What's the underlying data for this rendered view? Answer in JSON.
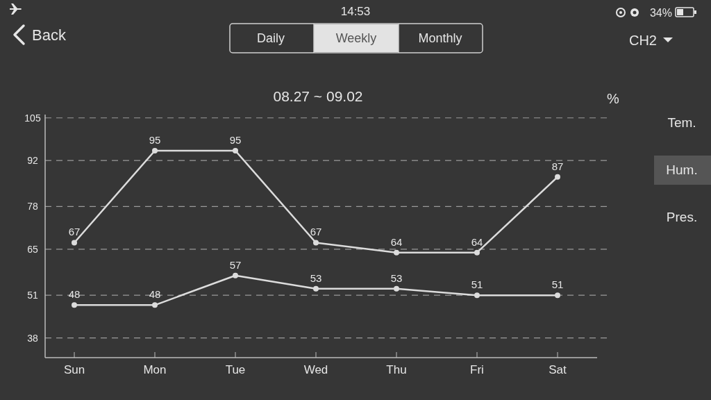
{
  "chart_data": {
    "type": "line",
    "title": "08.27 ~ 09.02",
    "ylabel": "%",
    "categories": [
      "Sun",
      "Mon",
      "Tue",
      "Wed",
      "Thu",
      "Fri",
      "Sat"
    ],
    "series": [
      {
        "color": "#dcdcdc",
        "values": [
          67,
          95,
          95,
          67,
          64,
          64,
          87
        ]
      },
      {
        "color": "#dcdcdc",
        "values": [
          48,
          48,
          57,
          53,
          53,
          51,
          51
        ]
      }
    ],
    "ylim": [
      32,
      106
    ],
    "yticks": [
      38,
      51,
      65,
      78,
      92,
      105
    ],
    "grid": "y",
    "marker": "circle",
    "line_style": "solid",
    "data_labels": true,
    "annotations": [
      "14:53",
      "34%",
      "Back",
      "Daily",
      "Weekly",
      "Monthly",
      "CH2",
      "Tem.",
      "Hum.",
      "Pres."
    ]
  }
}
